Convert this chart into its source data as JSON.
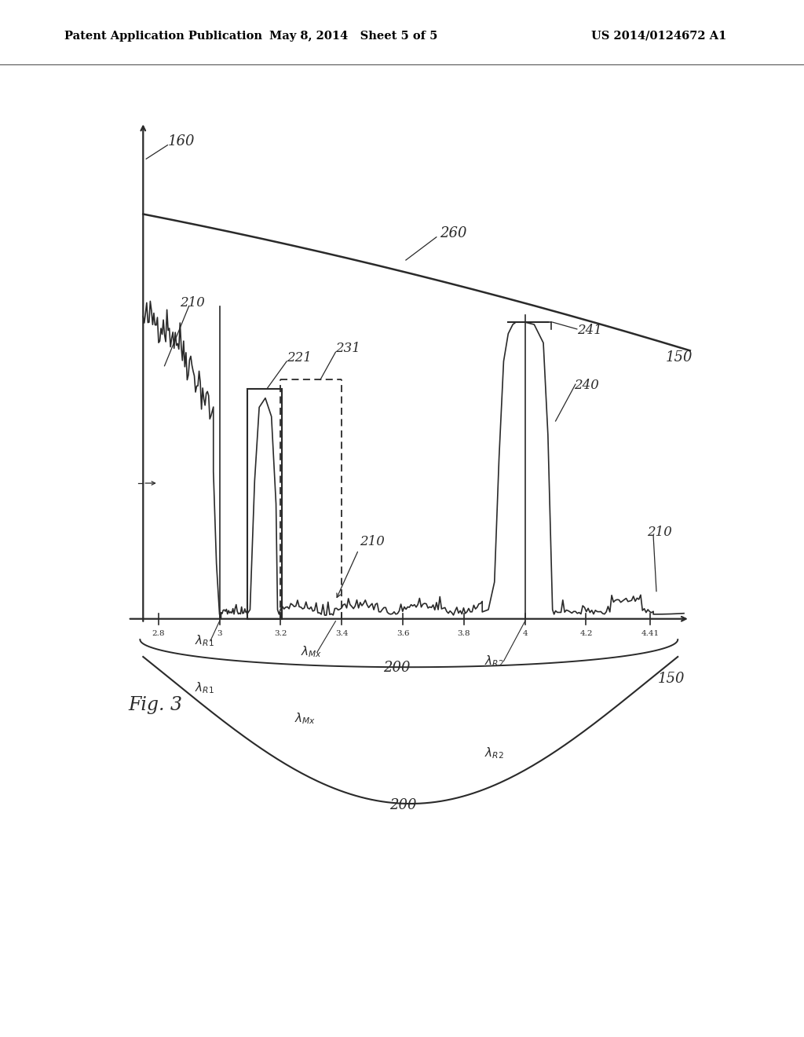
{
  "background_color": "#ffffff",
  "header_left": "Patent Application Publication",
  "header_mid": "May 8, 2014   Sheet 5 of 5",
  "header_right": "US 2014/0124672 A1",
  "fig_label": "Fig. 3",
  "line_color": "#2a2a2a",
  "x_tick_vals": [
    2.8,
    3.0,
    3.2,
    3.4,
    3.6,
    3.8,
    4.0,
    4.2,
    4.41
  ],
  "x_tick_labels": [
    "2.8",
    "3",
    "3.2",
    "3.4",
    "3.6",
    "3.8",
    "4",
    "4.2",
    "4.41"
  ]
}
